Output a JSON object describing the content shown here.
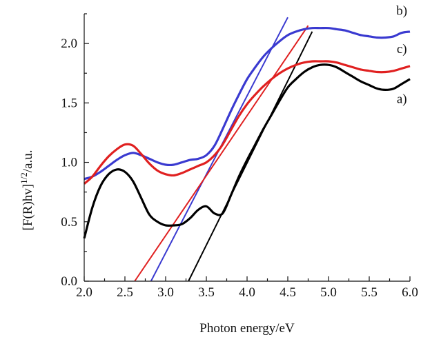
{
  "chart_data": {
    "type": "line",
    "xlabel": "Photon energy/eV",
    "ylabel_main": "[F(R)hv]",
    "ylabel_sup": "1/2",
    "ylabel_tail": "/a.u.",
    "xlim": [
      2.0,
      6.0
    ],
    "ylim": [
      0.0,
      2.25
    ],
    "x_ticks": [
      2.0,
      2.5,
      3.0,
      3.5,
      4.0,
      4.5,
      5.0,
      5.5,
      6.0
    ],
    "x_tick_labels": [
      "2.0",
      "2.5",
      "3.0",
      "3.5",
      "4.0",
      "4.5",
      "5.0",
      "5.5",
      "6.0"
    ],
    "y_ticks": [
      0.0,
      0.5,
      1.0,
      1.5,
      2.0
    ],
    "y_tick_labels": [
      "0.0",
      "0.5",
      "1.0",
      "1.5",
      "2.0"
    ],
    "grid": false,
    "series": [
      {
        "name": "a)",
        "color": "#000000",
        "x": [
          2.0,
          2.1,
          2.2,
          2.3,
          2.4,
          2.5,
          2.6,
          2.7,
          2.8,
          2.9,
          3.0,
          3.1,
          3.2,
          3.3,
          3.4,
          3.5,
          3.6,
          3.7,
          3.8,
          3.9,
          4.0,
          4.1,
          4.2,
          4.3,
          4.4,
          4.5,
          4.6,
          4.7,
          4.8,
          4.9,
          5.0,
          5.1,
          5.2,
          5.3,
          5.4,
          5.5,
          5.6,
          5.7,
          5.8,
          5.9,
          6.0
        ],
        "values": [
          0.36,
          0.62,
          0.8,
          0.9,
          0.94,
          0.92,
          0.84,
          0.7,
          0.56,
          0.5,
          0.47,
          0.47,
          0.48,
          0.53,
          0.6,
          0.63,
          0.57,
          0.57,
          0.72,
          0.88,
          1.02,
          1.15,
          1.28,
          1.4,
          1.52,
          1.63,
          1.7,
          1.76,
          1.8,
          1.82,
          1.82,
          1.8,
          1.76,
          1.72,
          1.68,
          1.65,
          1.62,
          1.61,
          1.62,
          1.66,
          1.7
        ]
      },
      {
        "name": "b)",
        "color": "#3a3ad0",
        "x": [
          2.0,
          2.1,
          2.2,
          2.3,
          2.4,
          2.5,
          2.6,
          2.7,
          2.8,
          2.9,
          3.0,
          3.1,
          3.2,
          3.3,
          3.4,
          3.5,
          3.6,
          3.7,
          3.8,
          3.9,
          4.0,
          4.1,
          4.2,
          4.3,
          4.4,
          4.5,
          4.6,
          4.7,
          4.8,
          4.9,
          5.0,
          5.1,
          5.2,
          5.3,
          5.4,
          5.5,
          5.6,
          5.7,
          5.8,
          5.9,
          6.0
        ],
        "values": [
          0.86,
          0.88,
          0.92,
          0.97,
          1.02,
          1.06,
          1.08,
          1.06,
          1.03,
          1.0,
          0.98,
          0.98,
          1.0,
          1.02,
          1.03,
          1.06,
          1.14,
          1.28,
          1.43,
          1.57,
          1.7,
          1.8,
          1.89,
          1.96,
          2.02,
          2.07,
          2.1,
          2.12,
          2.13,
          2.13,
          2.13,
          2.12,
          2.11,
          2.09,
          2.07,
          2.06,
          2.05,
          2.05,
          2.06,
          2.09,
          2.1
        ]
      },
      {
        "name": "c)",
        "color": "#e02020",
        "x": [
          2.0,
          2.1,
          2.2,
          2.3,
          2.4,
          2.5,
          2.6,
          2.7,
          2.8,
          2.9,
          3.0,
          3.1,
          3.2,
          3.3,
          3.4,
          3.5,
          3.6,
          3.7,
          3.8,
          3.9,
          4.0,
          4.1,
          4.2,
          4.3,
          4.4,
          4.5,
          4.6,
          4.7,
          4.8,
          4.9,
          5.0,
          5.1,
          5.2,
          5.3,
          5.4,
          5.5,
          5.6,
          5.7,
          5.8,
          5.9,
          6.0
        ],
        "values": [
          0.82,
          0.88,
          0.97,
          1.05,
          1.11,
          1.15,
          1.14,
          1.07,
          0.99,
          0.93,
          0.9,
          0.89,
          0.91,
          0.94,
          0.97,
          1.0,
          1.06,
          1.15,
          1.27,
          1.39,
          1.49,
          1.57,
          1.64,
          1.7,
          1.75,
          1.79,
          1.82,
          1.84,
          1.85,
          1.85,
          1.85,
          1.84,
          1.82,
          1.8,
          1.78,
          1.77,
          1.76,
          1.76,
          1.77,
          1.79,
          1.81
        ]
      }
    ],
    "tangent_lines": [
      {
        "color": "#000000",
        "x": [
          3.28,
          4.8
        ],
        "values": [
          0.0,
          2.1
        ]
      },
      {
        "color": "#3a3ad0",
        "x": [
          2.82,
          4.5
        ],
        "values": [
          0.0,
          2.22
        ]
      },
      {
        "color": "#e02020",
        "x": [
          2.62,
          4.75
        ],
        "values": [
          0.0,
          2.15
        ]
      }
    ],
    "curve_labels": [
      {
        "text": "b)",
        "x": 5.9,
        "y": 2.24
      },
      {
        "text": "c)",
        "x": 5.9,
        "y": 1.92
      },
      {
        "text": "a)",
        "x": 5.9,
        "y": 1.5
      }
    ]
  }
}
